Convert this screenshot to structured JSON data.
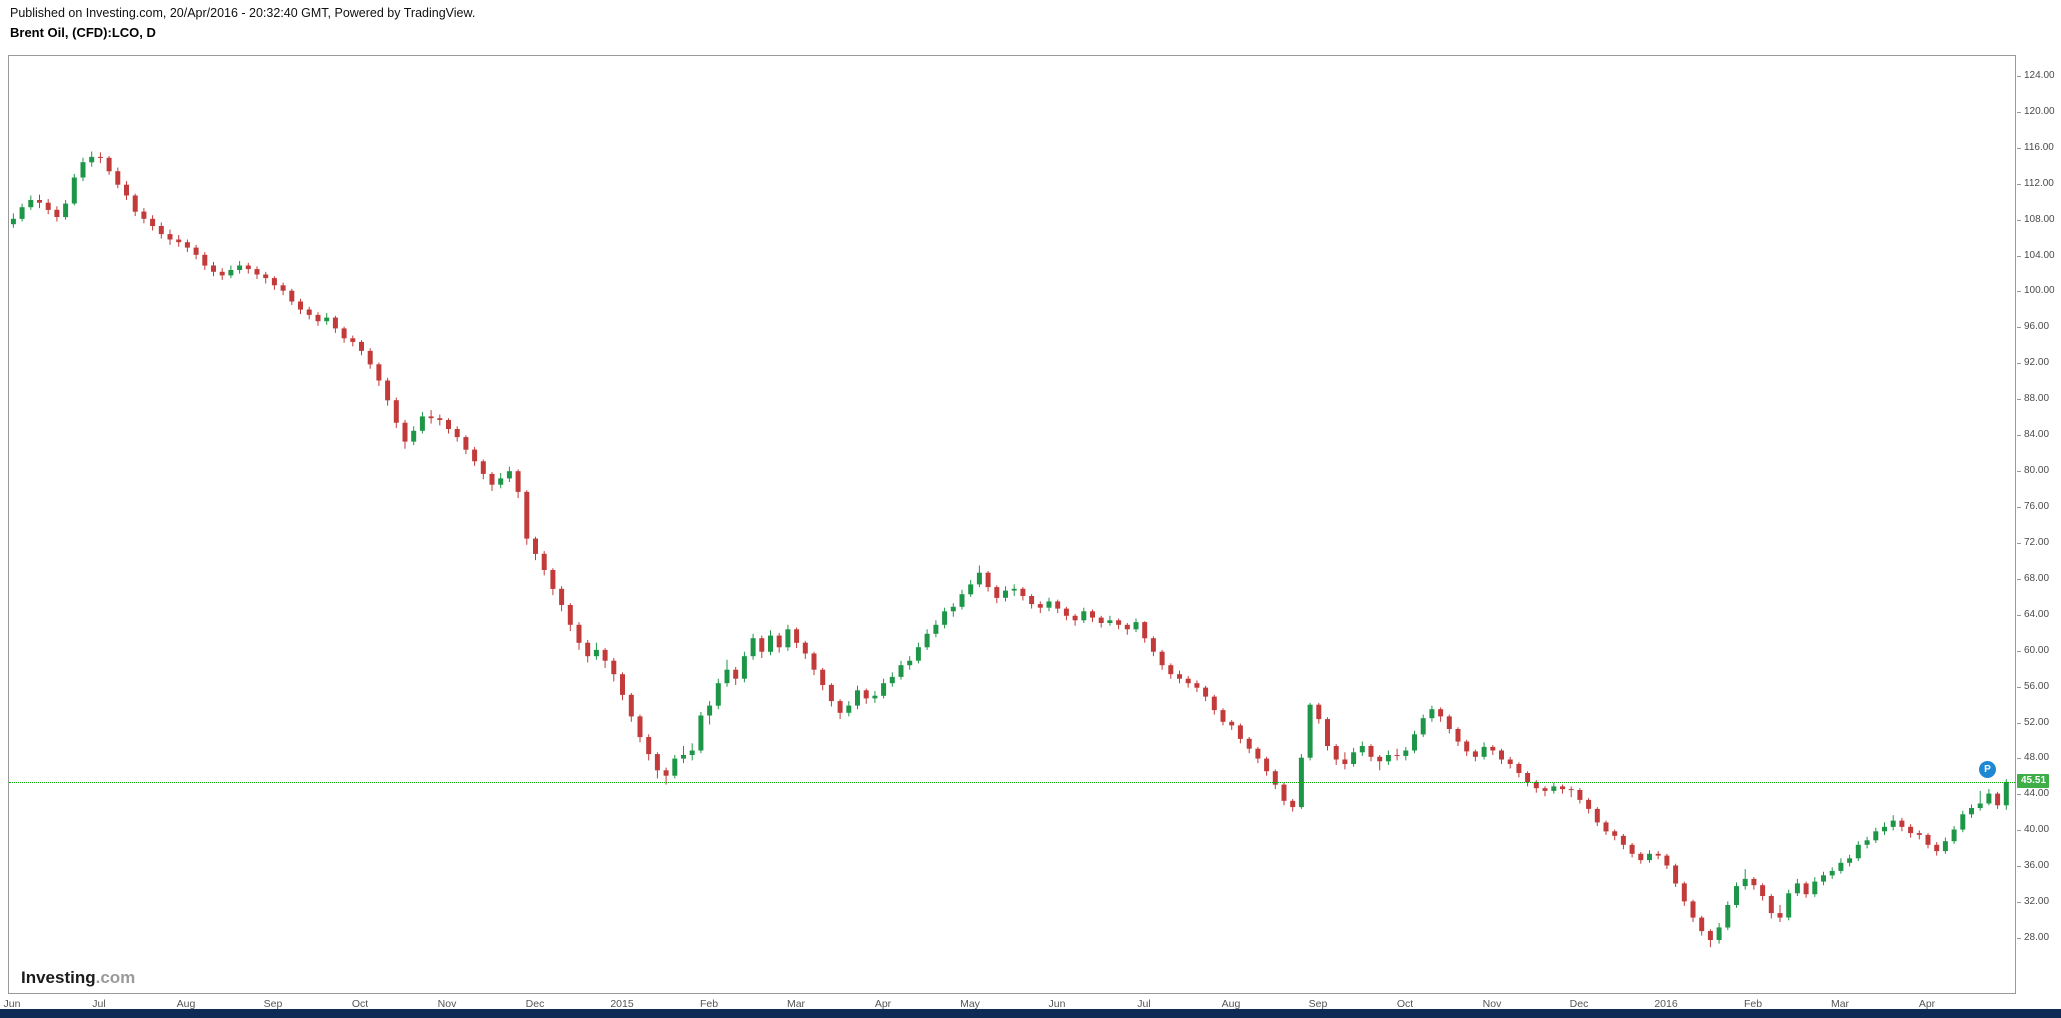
{
  "header": {
    "published_line": "Published on Investing.com, 20/Apr/2016 - 20:32:40 GMT, Powered by TradingView.",
    "instrument_line": "Brent Oil, (CFD):LCO, D"
  },
  "watermark": {
    "brand": "Investing",
    "suffix": ".com"
  },
  "price_line": {
    "value": "45.51",
    "color": "#00A800",
    "tag_bg": "#3FAE49",
    "tag_text": "#FFFFFF"
  },
  "marker": {
    "label": "P",
    "bg": "#1E88D2",
    "text": "#FFFFFF"
  },
  "colors": {
    "up": "#1E9648",
    "down": "#C23A3A",
    "axis_text": "#4A4A4A",
    "border": "#999999",
    "footer_bar": "#0D2B55",
    "watermark_suffix": "#9A9A9A",
    "background": "#FFFFFF"
  },
  "chart_data": {
    "type": "candlestick",
    "title": "Brent Oil, (CFD):LCO, D",
    "symbol": "(CFD):LCO",
    "interval": "D",
    "x_axis": {
      "labels": [
        "Jun",
        "Jul",
        "Aug",
        "Sep",
        "Oct",
        "Nov",
        "Dec",
        "2015",
        "Feb",
        "Mar",
        "Apr",
        "May",
        "Jun",
        "Jul",
        "Aug",
        "Sep",
        "Oct",
        "Nov",
        "Dec",
        "2016",
        "Feb",
        "Mar",
        "Apr"
      ],
      "label_every": 10
    },
    "y_axis": {
      "labels": [
        "124.00",
        "120.00",
        "116.00",
        "112.00",
        "108.00",
        "104.00",
        "100.00",
        "96.00",
        "92.00",
        "88.00",
        "84.00",
        "80.00",
        "76.00",
        "72.00",
        "68.00",
        "64.00",
        "60.00",
        "56.00",
        "52.00",
        "48.00",
        "44.00",
        "40.00",
        "36.00",
        "32.00",
        "28.00"
      ],
      "tick_step": 4,
      "top_value": 126.33,
      "bottom_value": 22.0
    },
    "last_price": 45.51,
    "candles": [
      [
        107.6,
        108.8,
        107.2,
        108.2
      ],
      [
        108.2,
        109.9,
        107.9,
        109.5
      ],
      [
        109.5,
        110.8,
        109.2,
        110.3
      ],
      [
        110.3,
        110.9,
        109.4,
        110.0
      ],
      [
        110.0,
        110.4,
        108.7,
        109.2
      ],
      [
        109.2,
        109.6,
        107.9,
        108.4
      ],
      [
        108.4,
        110.3,
        108.1,
        109.9
      ],
      [
        109.9,
        113.2,
        109.7,
        112.8
      ],
      [
        112.8,
        115.0,
        112.4,
        114.5
      ],
      [
        114.5,
        115.7,
        114.0,
        115.1
      ],
      [
        115.1,
        115.6,
        114.4,
        115.0
      ],
      [
        115.0,
        115.2,
        113.1,
        113.5
      ],
      [
        113.5,
        113.9,
        111.6,
        112.0
      ],
      [
        112.0,
        112.4,
        110.3,
        110.8
      ],
      [
        110.8,
        111.0,
        108.5,
        109.0
      ],
      [
        109.0,
        109.4,
        107.7,
        108.2
      ],
      [
        108.2,
        108.6,
        106.9,
        107.4
      ],
      [
        107.4,
        107.8,
        106.0,
        106.5
      ],
      [
        106.5,
        107.0,
        105.3,
        105.9
      ],
      [
        105.9,
        106.4,
        105.1,
        105.6
      ],
      [
        105.6,
        105.9,
        104.5,
        105.0
      ],
      [
        105.0,
        105.3,
        103.7,
        104.2
      ],
      [
        104.2,
        104.5,
        102.5,
        103.0
      ],
      [
        103.0,
        103.4,
        101.8,
        102.3
      ],
      [
        102.3,
        102.7,
        101.4,
        101.9
      ],
      [
        101.9,
        103.0,
        101.6,
        102.5
      ],
      [
        102.5,
        103.5,
        102.1,
        103.0
      ],
      [
        103.0,
        103.3,
        102.1,
        102.6
      ],
      [
        102.6,
        102.9,
        101.5,
        102.0
      ],
      [
        102.0,
        102.3,
        101.0,
        101.6
      ],
      [
        101.6,
        101.8,
        100.3,
        100.8
      ],
      [
        100.8,
        101.1,
        99.7,
        100.2
      ],
      [
        100.2,
        100.4,
        98.6,
        99.0
      ],
      [
        99.0,
        99.3,
        97.6,
        98.1
      ],
      [
        98.1,
        98.4,
        97.0,
        97.5
      ],
      [
        97.5,
        97.8,
        96.3,
        96.8
      ],
      [
        96.8,
        97.7,
        96.4,
        97.2
      ],
      [
        97.2,
        97.4,
        95.5,
        96.0
      ],
      [
        96.0,
        96.2,
        94.4,
        94.9
      ],
      [
        94.9,
        95.2,
        94.0,
        94.5
      ],
      [
        94.5,
        94.7,
        93.0,
        93.5
      ],
      [
        93.5,
        93.8,
        91.5,
        92.0
      ],
      [
        92.0,
        92.2,
        89.6,
        90.2
      ],
      [
        90.2,
        90.5,
        87.4,
        88.0
      ],
      [
        88.0,
        88.3,
        84.9,
        85.5
      ],
      [
        85.5,
        85.8,
        82.6,
        83.4
      ],
      [
        83.4,
        85.1,
        83.0,
        84.6
      ],
      [
        84.6,
        86.7,
        84.3,
        86.2
      ],
      [
        86.2,
        86.9,
        85.4,
        86.0
      ],
      [
        86.0,
        86.4,
        85.2,
        85.8
      ],
      [
        85.8,
        86.0,
        84.3,
        84.8
      ],
      [
        84.8,
        85.1,
        83.4,
        83.9
      ],
      [
        83.9,
        84.1,
        82.0,
        82.5
      ],
      [
        82.5,
        82.8,
        80.7,
        81.2
      ],
      [
        81.2,
        81.4,
        79.2,
        79.8
      ],
      [
        79.8,
        80.0,
        77.9,
        78.6
      ],
      [
        78.6,
        79.9,
        78.2,
        79.3
      ],
      [
        79.3,
        80.6,
        78.9,
        80.1
      ],
      [
        80.1,
        80.3,
        77.1,
        77.8
      ],
      [
        77.8,
        78.0,
        71.9,
        72.6
      ],
      [
        72.6,
        72.8,
        70.2,
        70.9
      ],
      [
        70.9,
        71.2,
        68.5,
        69.1
      ],
      [
        69.1,
        69.3,
        66.3,
        67.0
      ],
      [
        67.0,
        67.3,
        64.5,
        65.2
      ],
      [
        65.2,
        65.4,
        62.3,
        63.0
      ],
      [
        63.0,
        63.3,
        60.2,
        61.0
      ],
      [
        61.0,
        61.3,
        58.8,
        59.5
      ],
      [
        59.5,
        61.0,
        59.1,
        60.2
      ],
      [
        60.2,
        60.4,
        58.2,
        59.0
      ],
      [
        59.0,
        59.3,
        56.7,
        57.5
      ],
      [
        57.5,
        57.7,
        54.6,
        55.2
      ],
      [
        55.2,
        55.4,
        52.2,
        52.8
      ],
      [
        52.8,
        53.0,
        49.9,
        50.5
      ],
      [
        50.5,
        50.8,
        47.9,
        48.6
      ],
      [
        48.6,
        48.8,
        45.9,
        46.8
      ],
      [
        46.8,
        47.1,
        45.2,
        46.2
      ],
      [
        46.2,
        48.5,
        45.9,
        48.1
      ],
      [
        48.1,
        49.5,
        47.6,
        48.5
      ],
      [
        48.5,
        49.8,
        47.9,
        49.0
      ],
      [
        49.0,
        53.3,
        48.7,
        52.9
      ],
      [
        52.9,
        54.5,
        51.9,
        54.0
      ],
      [
        54.0,
        57.0,
        53.6,
        56.5
      ],
      [
        56.5,
        59.1,
        56.1,
        58.0
      ],
      [
        58.0,
        58.3,
        56.3,
        57.0
      ],
      [
        57.0,
        60.0,
        56.6,
        59.5
      ],
      [
        59.5,
        62.0,
        59.1,
        61.5
      ],
      [
        61.5,
        61.8,
        59.3,
        60.0
      ],
      [
        60.0,
        62.4,
        59.6,
        61.8
      ],
      [
        61.8,
        62.1,
        59.9,
        60.5
      ],
      [
        60.5,
        63.0,
        60.1,
        62.5
      ],
      [
        62.5,
        62.7,
        60.4,
        61.0
      ],
      [
        61.0,
        61.2,
        59.2,
        59.8
      ],
      [
        59.8,
        60.0,
        57.4,
        58.0
      ],
      [
        58.0,
        58.2,
        55.7,
        56.3
      ],
      [
        56.3,
        56.5,
        53.9,
        54.5
      ],
      [
        54.5,
        54.7,
        52.5,
        53.2
      ],
      [
        53.2,
        54.5,
        52.8,
        54.0
      ],
      [
        54.0,
        56.2,
        53.6,
        55.7
      ],
      [
        55.7,
        55.9,
        54.2,
        54.8
      ],
      [
        54.8,
        55.6,
        54.3,
        55.1
      ],
      [
        55.1,
        57.0,
        54.8,
        56.5
      ],
      [
        56.5,
        57.7,
        56.1,
        57.2
      ],
      [
        57.2,
        59.0,
        56.9,
        58.5
      ],
      [
        58.5,
        59.5,
        58.0,
        59.0
      ],
      [
        59.0,
        61.0,
        58.7,
        60.5
      ],
      [
        60.5,
        62.5,
        60.2,
        62.0
      ],
      [
        62.0,
        63.5,
        61.6,
        63.0
      ],
      [
        63.0,
        64.9,
        62.6,
        64.5
      ],
      [
        64.5,
        65.4,
        63.9,
        65.0
      ],
      [
        65.0,
        66.9,
        64.7,
        66.4
      ],
      [
        66.4,
        68.0,
        66.1,
        67.5
      ],
      [
        67.5,
        69.6,
        67.2,
        68.8
      ],
      [
        68.8,
        69.0,
        66.7,
        67.2
      ],
      [
        67.2,
        67.4,
        65.4,
        66.0
      ],
      [
        66.0,
        67.3,
        65.6,
        66.8
      ],
      [
        66.8,
        67.5,
        66.2,
        67.0
      ],
      [
        67.0,
        67.2,
        65.7,
        66.2
      ],
      [
        66.2,
        66.4,
        64.8,
        65.3
      ],
      [
        65.3,
        65.6,
        64.3,
        64.9
      ],
      [
        64.9,
        66.0,
        64.5,
        65.6
      ],
      [
        65.6,
        65.8,
        64.3,
        64.8
      ],
      [
        64.8,
        65.0,
        63.5,
        64.0
      ],
      [
        64.0,
        64.2,
        62.9,
        63.5
      ],
      [
        63.5,
        64.9,
        63.2,
        64.5
      ],
      [
        64.5,
        64.7,
        63.3,
        63.8
      ],
      [
        63.8,
        64.0,
        62.7,
        63.2
      ],
      [
        63.2,
        64.0,
        62.9,
        63.5
      ],
      [
        63.5,
        63.7,
        62.5,
        63.0
      ],
      [
        63.0,
        63.2,
        61.9,
        62.5
      ],
      [
        62.5,
        63.7,
        62.2,
        63.3
      ],
      [
        63.3,
        63.4,
        61.0,
        61.5
      ],
      [
        61.5,
        61.7,
        59.5,
        60.0
      ],
      [
        60.0,
        60.2,
        58.0,
        58.5
      ],
      [
        58.5,
        58.7,
        57.0,
        57.5
      ],
      [
        57.5,
        57.9,
        56.5,
        57.0
      ],
      [
        57.0,
        57.3,
        56.0,
        56.5
      ],
      [
        56.5,
        56.8,
        55.5,
        56.0
      ],
      [
        56.0,
        56.2,
        54.5,
        55.0
      ],
      [
        55.0,
        55.2,
        53.0,
        53.5
      ],
      [
        53.5,
        53.7,
        51.8,
        52.2
      ],
      [
        52.2,
        52.4,
        51.3,
        51.8
      ],
      [
        51.8,
        52.0,
        49.8,
        50.3
      ],
      [
        50.3,
        50.5,
        48.7,
        49.2
      ],
      [
        49.2,
        49.4,
        47.6,
        48.1
      ],
      [
        48.1,
        48.3,
        46.2,
        46.7
      ],
      [
        46.7,
        46.9,
        44.7,
        45.2
      ],
      [
        45.2,
        45.4,
        42.9,
        43.4
      ],
      [
        43.4,
        43.6,
        42.2,
        42.7
      ],
      [
        42.7,
        48.6,
        42.5,
        48.2
      ],
      [
        48.2,
        54.3,
        47.9,
        54.1
      ],
      [
        54.1,
        54.3,
        52.0,
        52.5
      ],
      [
        52.5,
        52.7,
        49.0,
        49.5
      ],
      [
        49.5,
        49.7,
        47.4,
        48.0
      ],
      [
        48.0,
        48.8,
        46.9,
        47.5
      ],
      [
        47.5,
        49.3,
        47.2,
        48.8
      ],
      [
        48.8,
        50.0,
        48.4,
        49.5
      ],
      [
        49.5,
        49.7,
        47.8,
        48.3
      ],
      [
        48.3,
        48.5,
        46.8,
        47.8
      ],
      [
        47.8,
        49.0,
        47.4,
        48.5
      ],
      [
        48.5,
        49.2,
        47.9,
        48.4
      ],
      [
        48.4,
        49.4,
        47.9,
        49.0
      ],
      [
        49.0,
        51.2,
        48.7,
        50.8
      ],
      [
        50.8,
        53.0,
        50.5,
        52.6
      ],
      [
        52.6,
        54.0,
        52.2,
        53.6
      ],
      [
        53.6,
        53.8,
        52.2,
        52.8
      ],
      [
        52.8,
        53.0,
        50.9,
        51.4
      ],
      [
        51.4,
        51.6,
        49.5,
        50.0
      ],
      [
        50.0,
        50.2,
        48.4,
        48.9
      ],
      [
        48.9,
        49.1,
        47.8,
        48.3
      ],
      [
        48.3,
        49.9,
        48.0,
        49.4
      ],
      [
        49.4,
        49.6,
        48.5,
        49.0
      ],
      [
        49.0,
        49.2,
        47.5,
        48.0
      ],
      [
        48.0,
        48.3,
        47.0,
        47.5
      ],
      [
        47.5,
        47.7,
        46.0,
        46.5
      ],
      [
        46.5,
        46.7,
        45.0,
        45.5
      ],
      [
        45.5,
        45.7,
        44.3,
        44.8
      ],
      [
        44.8,
        45.0,
        43.9,
        44.5
      ],
      [
        44.5,
        45.4,
        44.2,
        45.0
      ],
      [
        45.0,
        45.2,
        44.2,
        44.7
      ],
      [
        44.7,
        45.0,
        43.8,
        44.6
      ],
      [
        44.6,
        44.8,
        43.1,
        43.5
      ],
      [
        43.5,
        43.7,
        42.0,
        42.5
      ],
      [
        42.5,
        42.7,
        40.6,
        41.0
      ],
      [
        41.0,
        41.2,
        39.6,
        40.0
      ],
      [
        40.0,
        40.2,
        39.0,
        39.5
      ],
      [
        39.5,
        39.7,
        38.0,
        38.5
      ],
      [
        38.5,
        38.7,
        37.1,
        37.5
      ],
      [
        37.5,
        37.7,
        36.4,
        36.8
      ],
      [
        36.8,
        37.9,
        36.5,
        37.5
      ],
      [
        37.5,
        37.8,
        36.9,
        37.3
      ],
      [
        37.3,
        37.5,
        35.8,
        36.2
      ],
      [
        36.2,
        36.4,
        33.8,
        34.2
      ],
      [
        34.2,
        34.4,
        31.7,
        32.2
      ],
      [
        32.2,
        32.4,
        29.9,
        30.4
      ],
      [
        30.4,
        30.6,
        28.4,
        28.9
      ],
      [
        28.9,
        29.1,
        27.1,
        27.9
      ],
      [
        27.9,
        29.8,
        27.5,
        29.3
      ],
      [
        29.3,
        32.2,
        29.0,
        31.8
      ],
      [
        31.8,
        34.3,
        31.5,
        33.9
      ],
      [
        33.9,
        35.8,
        33.5,
        34.7
      ],
      [
        34.7,
        34.9,
        33.5,
        34.0
      ],
      [
        34.0,
        34.2,
        32.3,
        32.8
      ],
      [
        32.8,
        33.0,
        30.3,
        30.9
      ],
      [
        30.9,
        31.8,
        29.9,
        30.4
      ],
      [
        30.4,
        33.5,
        30.1,
        33.1
      ],
      [
        33.1,
        34.7,
        32.8,
        34.2
      ],
      [
        34.2,
        34.4,
        32.6,
        33.0
      ],
      [
        33.0,
        34.9,
        32.7,
        34.4
      ],
      [
        34.4,
        35.5,
        34.0,
        35.1
      ],
      [
        35.1,
        36.0,
        34.7,
        35.6
      ],
      [
        35.6,
        37.0,
        35.3,
        36.5
      ],
      [
        36.5,
        37.4,
        36.1,
        37.0
      ],
      [
        37.0,
        38.9,
        36.7,
        38.5
      ],
      [
        38.5,
        39.4,
        38.1,
        39.0
      ],
      [
        39.0,
        40.4,
        38.7,
        40.0
      ],
      [
        40.0,
        41.0,
        39.6,
        40.5
      ],
      [
        40.5,
        41.8,
        40.1,
        41.2
      ],
      [
        41.2,
        41.5,
        40.0,
        40.5
      ],
      [
        40.5,
        40.8,
        39.3,
        39.8
      ],
      [
        39.8,
        40.1,
        39.1,
        39.6
      ],
      [
        39.6,
        39.8,
        38.1,
        38.5
      ],
      [
        38.5,
        38.8,
        37.3,
        37.8
      ],
      [
        37.8,
        39.3,
        37.5,
        38.9
      ],
      [
        38.9,
        40.6,
        38.6,
        40.2
      ],
      [
        40.2,
        42.3,
        39.9,
        41.9
      ],
      [
        41.9,
        43.0,
        41.5,
        42.6
      ],
      [
        42.6,
        44.5,
        42.3,
        43.1
      ],
      [
        43.1,
        44.7,
        42.9,
        44.2
      ],
      [
        44.2,
        44.4,
        42.5,
        42.9
      ],
      [
        42.9,
        45.8,
        42.4,
        45.51
      ]
    ]
  }
}
